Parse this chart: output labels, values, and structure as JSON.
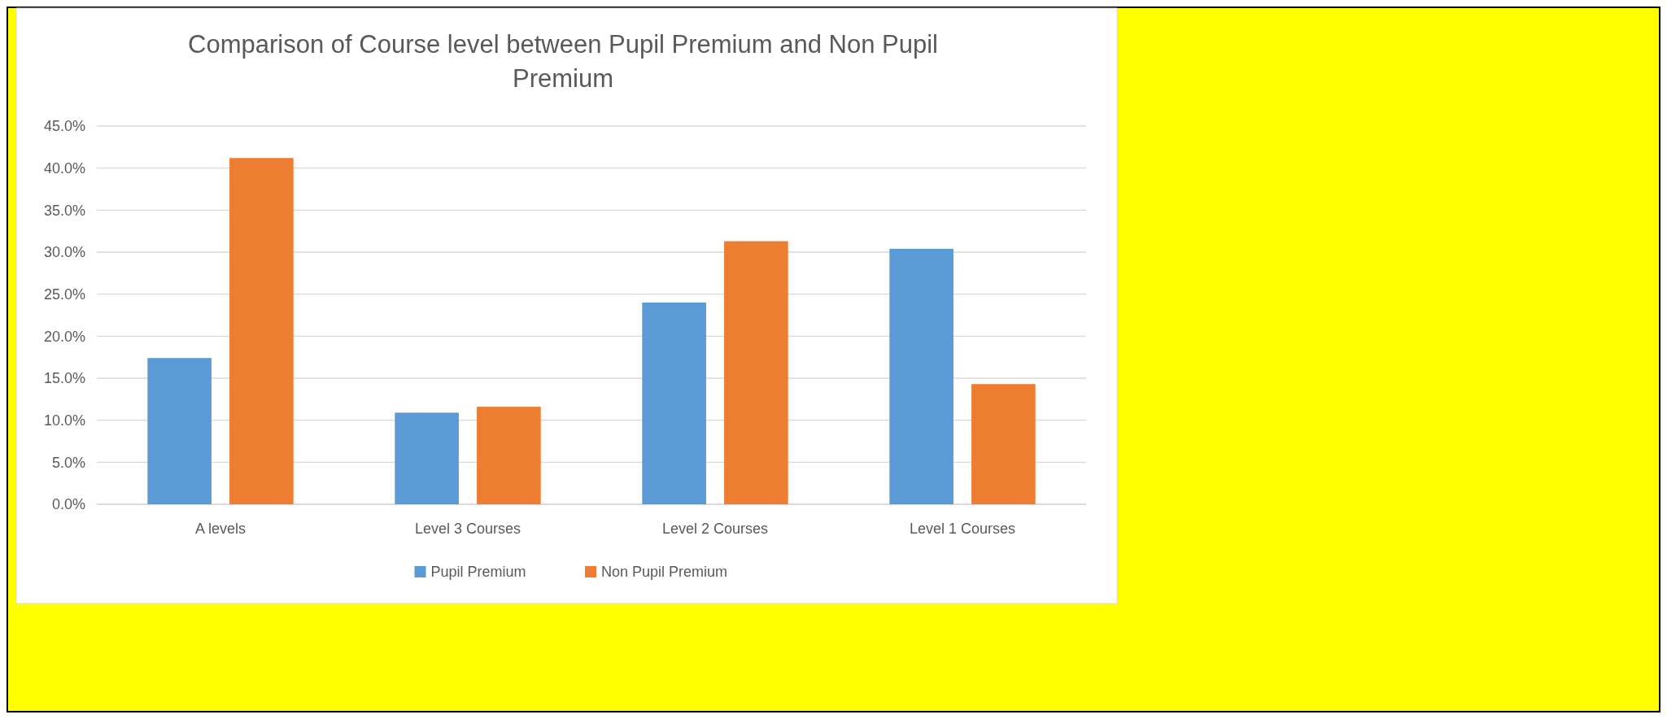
{
  "chart_data": {
    "type": "bar",
    "title": "Comparison of Course level between Pupil Premium and Non Pupil Premium",
    "categories": [
      "A levels",
      "Level 3 Courses",
      "Level 2 Courses",
      "Level 1 Courses"
    ],
    "series": [
      {
        "name": "Pupil Premium",
        "color": "#5b9bd5",
        "values": [
          17.4,
          10.9,
          24.0,
          30.4
        ]
      },
      {
        "name": "Non Pupil Premium",
        "color": "#ed7d31",
        "values": [
          41.2,
          11.6,
          31.3,
          14.3
        ]
      }
    ],
    "ylim": [
      0,
      45
    ],
    "yticks": [
      {
        "value": 0,
        "label": "0.0%"
      },
      {
        "value": 5,
        "label": "5.0%"
      },
      {
        "value": 10,
        "label": "10.0%"
      },
      {
        "value": 15,
        "label": "15.0%"
      },
      {
        "value": 20,
        "label": "20.0%"
      },
      {
        "value": 25,
        "label": "25.0%"
      },
      {
        "value": 30,
        "label": "30.0%"
      },
      {
        "value": 35,
        "label": "35.0%"
      },
      {
        "value": 40,
        "label": "40.0%"
      },
      {
        "value": 45,
        "label": "45.0%"
      }
    ],
    "grid": "y",
    "legend": "bottom"
  }
}
